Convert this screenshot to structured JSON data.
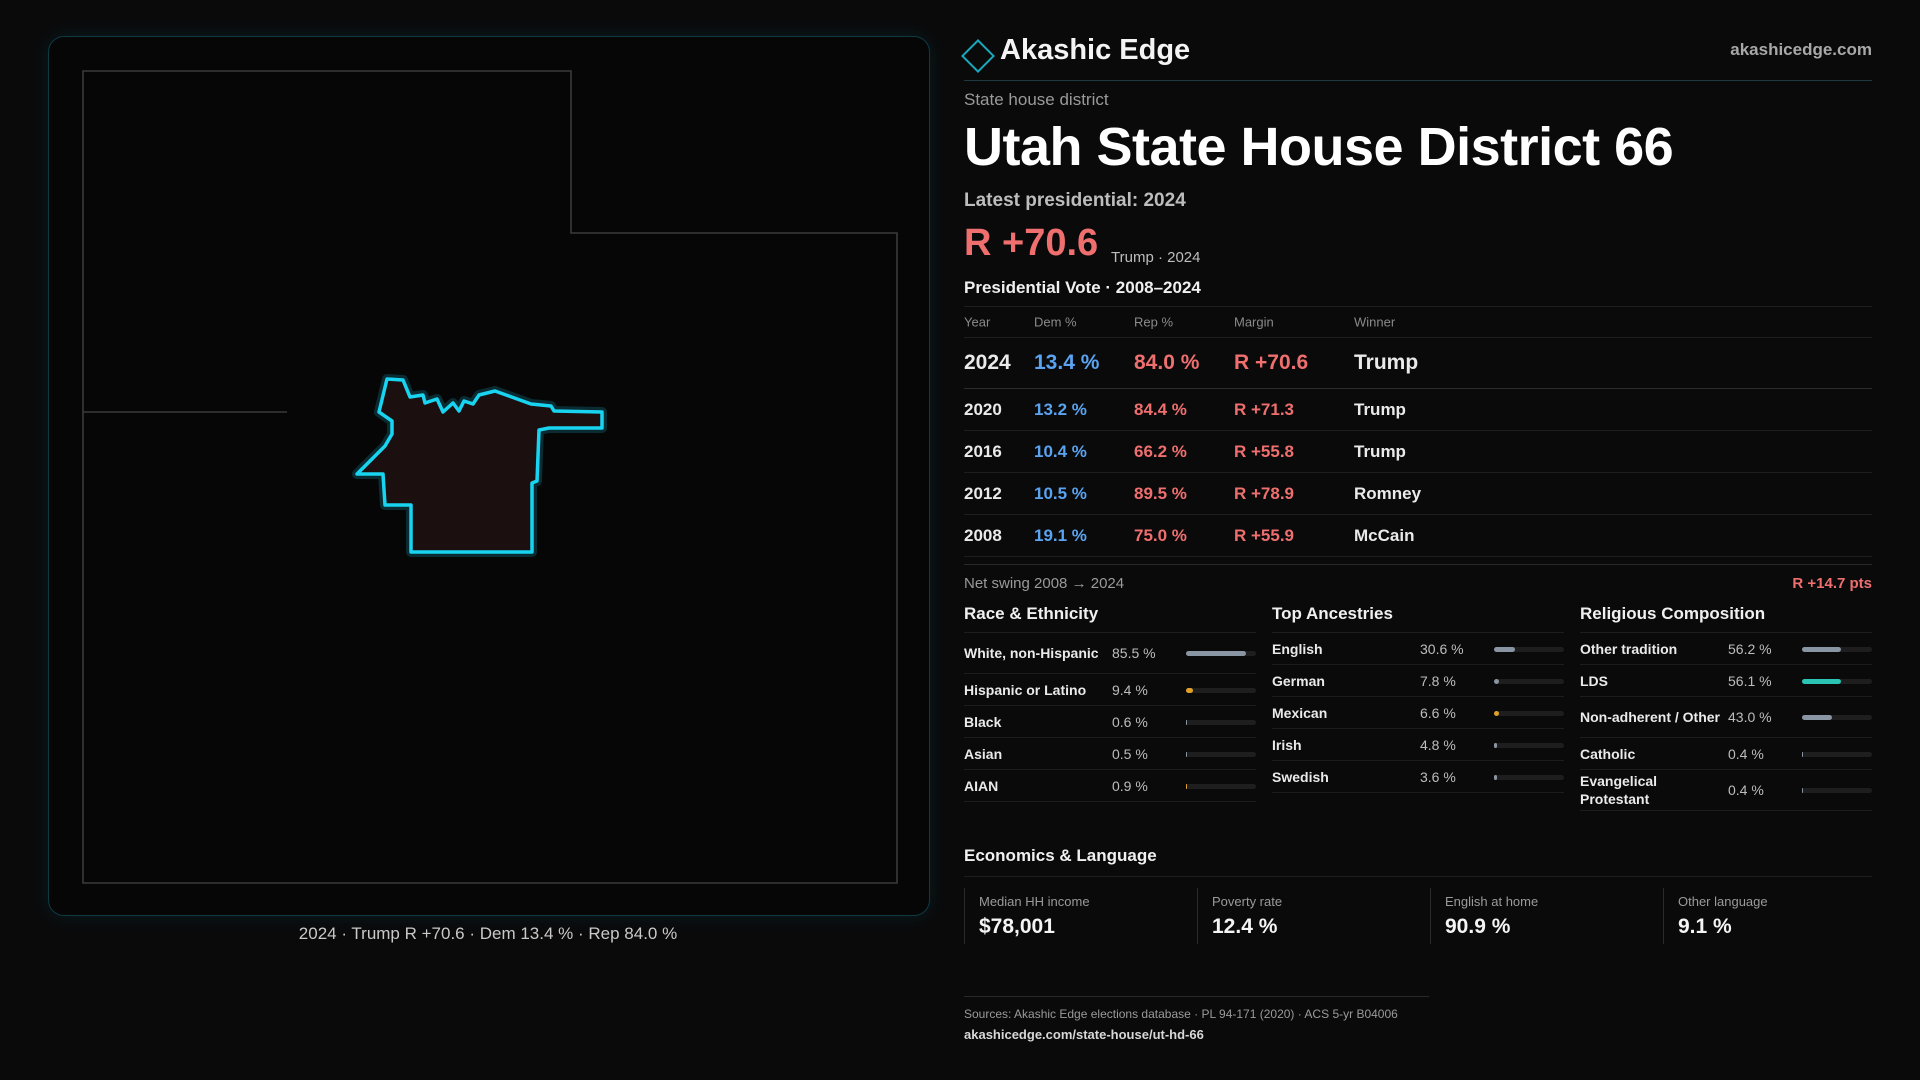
{
  "map": {
    "caption": "2024 · Trump R +70.6 · Dem 13.4 % · Rep 84.0 %",
    "state_outline_color": "#3a3a3a",
    "district_color": "#19d4f0",
    "district_fill": "#1c0f0f"
  },
  "header": {
    "brand": "Akashic Edge",
    "site": "akashicedge.com",
    "logo_icon": "diamond-icon"
  },
  "district": {
    "type_label": "State house district",
    "title": "Utah State House District 66",
    "latest_label": "Latest presidential: 2024",
    "margin": "R +70.6",
    "margin_sub": "Trump · 2024"
  },
  "results": {
    "title": "Presidential Vote · 2008–2024",
    "headers": [
      "Year",
      "Dem %",
      "Rep %",
      "Margin",
      "Winner"
    ],
    "rows": [
      {
        "year": "2024",
        "dem": "13.4 %",
        "rep": "84.0 %",
        "margin": "R +70.6",
        "winner": "Trump"
      },
      {
        "year": "2020",
        "dem": "13.2 %",
        "rep": "84.4 %",
        "margin": "R +71.3",
        "winner": "Trump"
      },
      {
        "year": "2016",
        "dem": "10.4 %",
        "rep": "66.2 %",
        "margin": "R +55.8",
        "winner": "Trump"
      },
      {
        "year": "2012",
        "dem": "10.5 %",
        "rep": "89.5 %",
        "margin": "R +78.9",
        "winner": "Romney"
      },
      {
        "year": "2008",
        "dem": "19.1 %",
        "rep": "75.0 %",
        "margin": "R +55.9",
        "winner": "McCain"
      }
    ],
    "swing_label": "Net swing 2008 → 2024",
    "swing_value": "R +14.7 pts"
  },
  "race": {
    "title": "Race & Ethnicity",
    "items": [
      {
        "label": "White, non-Hispanic",
        "pct": "85.5 %",
        "value": 85.5,
        "color": "#8a95a3"
      },
      {
        "label": "Hispanic or Latino",
        "pct": "9.4 %",
        "value": 9.4,
        "color": "#e0a02a"
      },
      {
        "label": "Black",
        "pct": "0.6 %",
        "value": 0.6,
        "color": "#8a95a3"
      },
      {
        "label": "Asian",
        "pct": "0.5 %",
        "value": 0.5,
        "color": "#8a95a3"
      },
      {
        "label": "AIAN",
        "pct": "0.9 %",
        "value": 0.9,
        "color": "#e0a02a"
      }
    ]
  },
  "ancestry": {
    "title": "Top Ancestries",
    "items": [
      {
        "label": "English",
        "pct": "30.6 %",
        "value": 30.6,
        "color": "#8a95a3"
      },
      {
        "label": "German",
        "pct": "7.8 %",
        "value": 7.8,
        "color": "#8a95a3"
      },
      {
        "label": "Mexican",
        "pct": "6.6 %",
        "value": 6.6,
        "color": "#e0a02a"
      },
      {
        "label": "Irish",
        "pct": "4.8 %",
        "value": 4.8,
        "color": "#8a95a3"
      },
      {
        "label": "Swedish",
        "pct": "3.6 %",
        "value": 3.6,
        "color": "#8a95a3"
      }
    ]
  },
  "religion": {
    "title": "Religious Composition",
    "items": [
      {
        "label": "Other tradition",
        "pct": "56.2 %",
        "value": 56.2,
        "color": "#8a95a3"
      },
      {
        "label": "LDS",
        "pct": "56.1 %",
        "value": 56.1,
        "color": "#2bc4b4"
      },
      {
        "label": "Non-adherent / Other",
        "pct": "43.0 %",
        "value": 43.0,
        "color": "#8a95a3"
      },
      {
        "label": "Catholic",
        "pct": "0.4 %",
        "value": 0.4,
        "color": "#8a95a3"
      },
      {
        "label": "Evangelical Protestant",
        "pct": "0.4 %",
        "value": 0.4,
        "color": "#8a95a3"
      }
    ]
  },
  "economics": {
    "title": "Economics & Language",
    "items": [
      {
        "label": "Median HH income",
        "value": "$78,001"
      },
      {
        "label": "Poverty rate",
        "value": "12.4 %"
      },
      {
        "label": "English at home",
        "value": "90.9 %"
      },
      {
        "label": "Other language",
        "value": "9.1 %"
      }
    ]
  },
  "sources": {
    "text": "Sources: Akashic Edge elections database · PL 94-171 (2020) · ACS 5-yr B04006",
    "url": "akashicedge.com/state-house/ut-hd-66"
  }
}
